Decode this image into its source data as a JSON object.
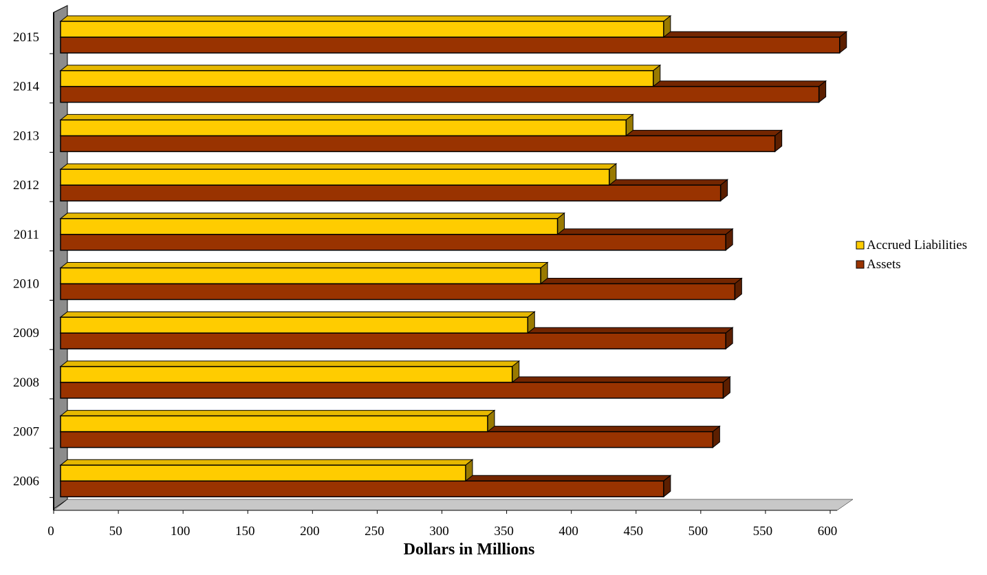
{
  "chart_data": {
    "type": "bar",
    "orientation": "horizontal",
    "style": "3d",
    "categories": [
      "2006",
      "2007",
      "2008",
      "2009",
      "2010",
      "2011",
      "2012",
      "2013",
      "2014",
      "2015"
    ],
    "series": [
      {
        "name": "Accrued Liabilities",
        "color": "#FFCC00",
        "values": [
          313,
          330,
          349,
          361,
          371,
          384,
          424,
          437,
          458,
          466
        ]
      },
      {
        "name": "Assets",
        "color": "#993300",
        "values": [
          466,
          504,
          512,
          514,
          521,
          514,
          510,
          552,
          586,
          602
        ]
      }
    ],
    "xlabel": "Dollars in Millions",
    "ylabel": "",
    "xlim": [
      0,
      600
    ],
    "xticks": [
      "0",
      "50",
      "100",
      "150",
      "200",
      "250",
      "300",
      "350",
      "400",
      "450",
      "500",
      "550",
      "600"
    ],
    "legend_position": "right",
    "grid": false
  }
}
